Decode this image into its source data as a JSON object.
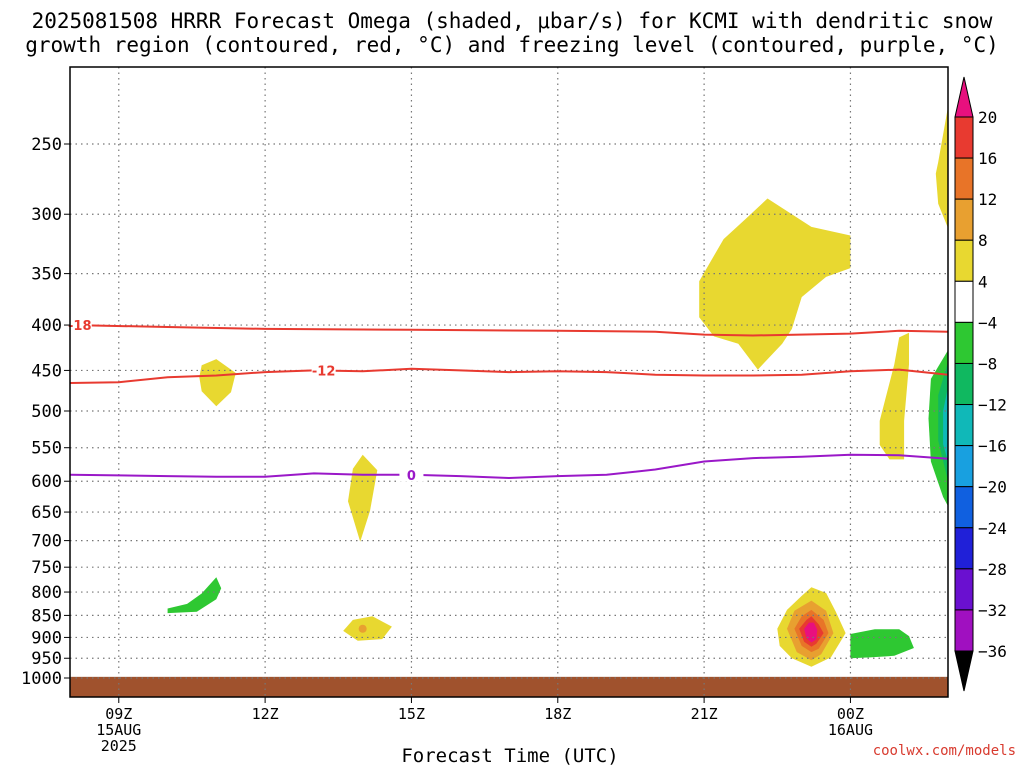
{
  "title_line1": "2025081508 HRRR Forecast Omega (shaded, μbar/s) for KCMI with dendritic snow",
  "title_line2": "growth region (contoured, red, °C) and freezing level (contoured, purple, °C)",
  "credit": "coolwx.com/models",
  "chart_data": {
    "type": "time-height cross-section",
    "title": "2025081508 HRRR Forecast Omega (shaded, μbar/s) for KCMI with dendritic snow growth region (contoured, red, °C) and freezing level (contoured, purple, °C)",
    "xlabel": "Forecast Time (UTC)",
    "ylabel": "",
    "y_scale": "log-pressure (hPa), inverted",
    "y_ticks": [
      250,
      300,
      350,
      400,
      450,
      500,
      550,
      600,
      650,
      700,
      750,
      800,
      850,
      900,
      950,
      1000
    ],
    "x_ticks": [
      {
        "hour": 9,
        "label": "09Z",
        "sub": [
          "15AUG",
          "2025"
        ]
      },
      {
        "hour": 12,
        "label": "12Z",
        "sub": []
      },
      {
        "hour": 15,
        "label": "15Z",
        "sub": []
      },
      {
        "hour": 18,
        "label": "18Z",
        "sub": []
      },
      {
        "hour": 21,
        "label": "21Z",
        "sub": []
      },
      {
        "hour": 24,
        "label": "00Z",
        "sub": [
          "16AUG"
        ]
      }
    ],
    "xlim_hours": [
      8,
      26
    ],
    "grid": true,
    "colorbar": {
      "labels": [
        "20",
        "16",
        "12",
        "8",
        "4",
        "−4",
        "−8",
        "−12",
        "−16",
        "−20",
        "−24",
        "−28",
        "−32",
        "−36"
      ],
      "colors": [
        "#e8107e",
        "#e83a30",
        "#e87428",
        "#e8a030",
        "#e8d830",
        "#ffffff",
        "#2ec832",
        "#10b860",
        "#10b8b8",
        "#18a0e0",
        "#1060e0",
        "#2020d8",
        "#6a10d0",
        "#a010c0",
        "#a8a8a8",
        "#000000"
      ]
    },
    "contours": [
      {
        "name": "-18",
        "color": "#e83a30",
        "label_hour": 8.2,
        "points": [
          [
            8,
            400
          ],
          [
            10,
            402
          ],
          [
            12,
            404
          ],
          [
            15,
            405
          ],
          [
            18,
            406
          ],
          [
            20,
            407
          ],
          [
            21,
            410
          ],
          [
            22,
            411
          ],
          [
            24,
            409
          ],
          [
            25,
            406
          ],
          [
            26,
            407
          ]
        ]
      },
      {
        "name": "-12",
        "color": "#e83a30",
        "label_hour": 13.2,
        "points": [
          [
            8,
            465
          ],
          [
            9,
            464
          ],
          [
            10,
            458
          ],
          [
            11,
            456
          ],
          [
            12,
            452
          ],
          [
            13,
            450
          ],
          [
            14,
            451
          ],
          [
            15,
            448
          ],
          [
            16,
            450
          ],
          [
            17,
            452
          ],
          [
            18,
            451
          ],
          [
            19,
            452
          ],
          [
            20,
            455
          ],
          [
            21,
            456
          ],
          [
            22,
            456
          ],
          [
            23,
            455
          ],
          [
            24,
            451
          ],
          [
            25,
            449
          ],
          [
            26,
            455
          ]
        ]
      },
      {
        "name": "0",
        "color": "#9a18c8",
        "label_hour": 15,
        "points": [
          [
            8,
            590
          ],
          [
            9,
            591
          ],
          [
            10,
            592
          ],
          [
            11,
            593
          ],
          [
            12,
            593
          ],
          [
            13,
            588
          ],
          [
            14,
            590
          ],
          [
            15,
            590
          ],
          [
            16,
            592
          ],
          [
            17,
            595
          ],
          [
            18,
            592
          ],
          [
            19,
            590
          ],
          [
            20,
            582
          ],
          [
            21,
            570
          ],
          [
            22,
            565
          ],
          [
            23,
            563
          ],
          [
            24,
            560
          ],
          [
            25,
            561
          ],
          [
            26,
            566
          ]
        ]
      }
    ],
    "omega_regions": [
      {
        "value": 4,
        "color": "#e8d830",
        "points": [
          [
            10.7,
            444
          ],
          [
            11,
            437
          ],
          [
            11.4,
            453
          ],
          [
            11.3,
            476
          ],
          [
            11,
            494
          ],
          [
            10.7,
            475
          ],
          [
            10.65,
            458
          ]
        ]
      },
      {
        "value": 4,
        "color": "#e8d830",
        "points": [
          [
            13.8,
            581
          ],
          [
            14,
            560
          ],
          [
            14.3,
            583
          ],
          [
            14.15,
            648
          ],
          [
            13.95,
            702
          ],
          [
            13.7,
            632
          ]
        ]
      },
      {
        "value": 4,
        "color": "#e8d830",
        "points": [
          [
            13.6,
            885
          ],
          [
            13.8,
            860
          ],
          [
            14.2,
            852
          ],
          [
            14.6,
            875
          ],
          [
            14.4,
            904
          ],
          [
            13.9,
            908
          ]
        ]
      },
      {
        "value": 4,
        "color": "#e8d830",
        "points": [
          [
            20.9,
            357
          ],
          [
            21.4,
            320
          ],
          [
            21.9,
            302
          ],
          [
            22.3,
            288
          ],
          [
            23.2,
            310
          ],
          [
            24,
            317
          ],
          [
            24,
            345
          ],
          [
            23.5,
            353
          ],
          [
            23,
            372
          ],
          [
            22.8,
            404
          ],
          [
            22.6,
            420
          ],
          [
            22.1,
            449
          ],
          [
            21.7,
            420
          ],
          [
            21.2,
            412
          ],
          [
            20.9,
            392
          ]
        ]
      },
      {
        "value": 4,
        "color": "#e8d830",
        "points": [
          [
            24.6,
            513
          ],
          [
            24.9,
            443
          ],
          [
            25,
            413
          ],
          [
            25.2,
            408
          ],
          [
            25.2,
            443
          ],
          [
            25.1,
            513
          ],
          [
            25.1,
            567
          ],
          [
            24.8,
            567
          ],
          [
            24.6,
            546
          ]
        ]
      },
      {
        "value": 4,
        "color": "#e8d830",
        "points": [
          [
            25.8,
            262
          ],
          [
            26,
            227
          ],
          [
            26,
            311
          ],
          [
            25.8,
            292
          ],
          [
            25.75,
            270
          ]
        ]
      },
      {
        "value": -4,
        "color": "#2ec832",
        "points": [
          [
            10,
            835
          ],
          [
            10.4,
            825
          ],
          [
            10.7,
            803
          ],
          [
            11,
            770
          ],
          [
            11.1,
            792
          ],
          [
            11,
            815
          ],
          [
            10.6,
            842
          ],
          [
            10,
            845
          ]
        ]
      },
      {
        "value": -4,
        "color": "#2ec832",
        "points": [
          [
            24,
            892
          ],
          [
            24.5,
            881
          ],
          [
            25,
            881
          ],
          [
            25.2,
            897
          ],
          [
            25.3,
            925
          ],
          [
            24.9,
            944
          ],
          [
            24.4,
            948
          ],
          [
            24,
            950
          ],
          [
            24,
            925
          ]
        ]
      },
      {
        "value": -4,
        "color": "#2ec832",
        "points": [
          [
            26,
            427
          ],
          [
            25.65,
            460
          ],
          [
            25.6,
            510
          ],
          [
            25.65,
            570
          ],
          [
            25.9,
            625
          ],
          [
            26,
            640
          ]
        ]
      },
      {
        "value": -8,
        "color": "#10b860",
        "points": [
          [
            26,
            440
          ],
          [
            25.8,
            480
          ],
          [
            25.8,
            540
          ],
          [
            26,
            600
          ]
        ]
      },
      {
        "value": -12,
        "color": "#10b8b8",
        "points": [
          [
            26,
            470
          ],
          [
            25.9,
            500
          ],
          [
            25.9,
            545
          ],
          [
            26,
            570
          ]
        ]
      },
      {
        "value": 4,
        "color": "#e8d830",
        "points": [
          [
            22.5,
            880
          ],
          [
            22.7,
            838
          ],
          [
            23,
            808
          ],
          [
            23.2,
            790
          ],
          [
            23.5,
            802
          ],
          [
            23.7,
            842
          ],
          [
            23.9,
            890
          ],
          [
            23.6,
            948
          ],
          [
            23.2,
            971
          ],
          [
            22.8,
            950
          ],
          [
            22.55,
            920
          ]
        ]
      },
      {
        "value": 8,
        "color": "#e8a030",
        "points": [
          [
            22.7,
            880
          ],
          [
            22.85,
            840
          ],
          [
            23.2,
            818
          ],
          [
            23.5,
            840
          ],
          [
            23.65,
            890
          ],
          [
            23.4,
            940
          ],
          [
            23.2,
            955
          ],
          [
            22.9,
            935
          ]
        ]
      },
      {
        "value": 12,
        "color": "#e87428",
        "points": [
          [
            22.85,
            880
          ],
          [
            23,
            852
          ],
          [
            23.2,
            838
          ],
          [
            23.45,
            860
          ],
          [
            23.55,
            890
          ],
          [
            23.35,
            927
          ],
          [
            23.2,
            935
          ],
          [
            23,
            920
          ]
        ]
      },
      {
        "value": 16,
        "color": "#e83a30",
        "points": [
          [
            22.95,
            880
          ],
          [
            23.1,
            860
          ],
          [
            23.2,
            852
          ],
          [
            23.35,
            870
          ],
          [
            23.45,
            890
          ],
          [
            23.3,
            915
          ],
          [
            23.2,
            922
          ],
          [
            23.05,
            910
          ]
        ]
      },
      {
        "value": 20,
        "color": "#e8107e",
        "points": [
          [
            23.05,
            880
          ],
          [
            23.15,
            866
          ],
          [
            23.25,
            866
          ],
          [
            23.32,
            882
          ],
          [
            23.3,
            905
          ],
          [
            23.2,
            912
          ],
          [
            23.1,
            902
          ]
        ]
      },
      {
        "value": 8,
        "color": "#e8a030",
        "points": [
          [
            14,
            880
          ]
        ]
      }
    ],
    "ground": {
      "color": "#a0522d",
      "top_hpa": 997
    }
  }
}
